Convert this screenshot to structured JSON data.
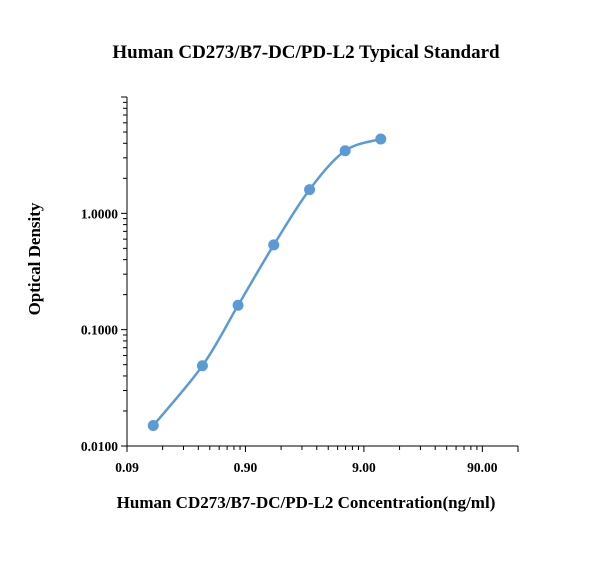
{
  "chart_data": {
    "type": "scatter",
    "title": "Human CD273/B7-DC/PD-L2 Typical Standard",
    "xlabel": "Human CD273/B7-DC/PD-L2 Concentration(ng/ml)",
    "ylabel": "Optical Density",
    "x_scale": "log",
    "y_scale": "log",
    "xlim": [
      0.09,
      180
    ],
    "ylim": [
      0.01,
      10
    ],
    "x_ticks": [
      0.09,
      0.9,
      9,
      90
    ],
    "x_tick_labels": [
      "0.09",
      "0.90",
      "9.00",
      "90.00"
    ],
    "y_ticks": [
      0.01,
      0.1,
      1
    ],
    "y_tick_labels": [
      "0.0100",
      "0.1000",
      "1.0000"
    ],
    "grid": false,
    "legend": "none",
    "series": [
      {
        "x": [
          0.15,
          0.39,
          0.78,
          1.56,
          3.13,
          6.25,
          12.5
        ],
        "y": [
          0.015,
          0.049,
          0.162,
          0.535,
          1.6,
          3.45,
          4.35
        ],
        "color": "#5b9bd5",
        "line": "smooth",
        "marker": "circle"
      }
    ]
  }
}
